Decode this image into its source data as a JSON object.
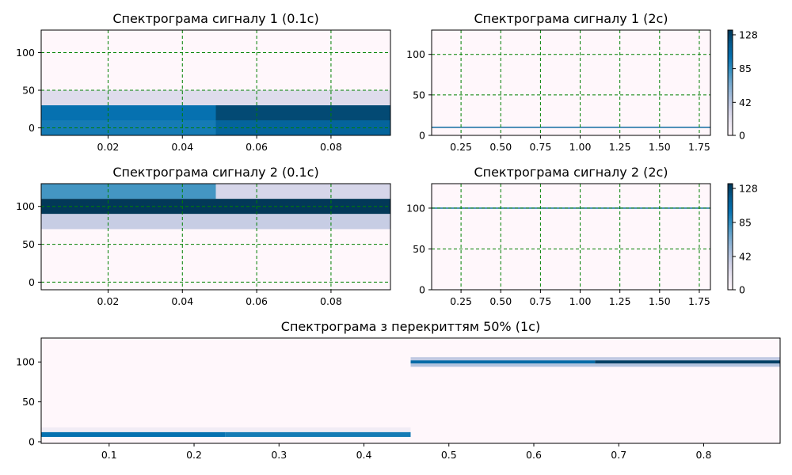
{
  "colormap": {
    "name": "PuBu",
    "stops": [
      "#fff7fb",
      "#ece7f2",
      "#d0d1e6",
      "#a6bddb",
      "#74a9cf",
      "#3690c0",
      "#0570b0",
      "#045a8d",
      "#023858"
    ]
  },
  "chart_data": [
    {
      "id": "s1_short",
      "type": "heatmap",
      "title": "Спектрограма сигналу 1 (0.1с)",
      "xlim": [
        0.002,
        0.096
      ],
      "ylim": [
        -10,
        130
      ],
      "xticks": [
        0.02,
        0.04,
        0.06,
        0.08
      ],
      "xtick_labels": [
        "0.02",
        "0.04",
        "0.06",
        "0.08"
      ],
      "yticks": [
        0,
        50,
        100
      ],
      "ytick_labels": [
        "0",
        "50",
        "100"
      ],
      "grid": true,
      "cells": [
        {
          "x0": 0.002,
          "x1": 0.049,
          "y0": -10,
          "y1": 10,
          "v": 95
        },
        {
          "x0": 0.049,
          "x1": 0.096,
          "y0": -10,
          "y1": 10,
          "v": 110
        },
        {
          "x0": 0.002,
          "x1": 0.049,
          "y0": 10,
          "y1": 30,
          "v": 100
        },
        {
          "x0": 0.049,
          "x1": 0.096,
          "y0": 10,
          "y1": 30,
          "v": 125
        },
        {
          "x0": 0.002,
          "x1": 0.096,
          "y0": 30,
          "y1": 50,
          "v": 25
        }
      ]
    },
    {
      "id": "s1_long",
      "type": "heatmap",
      "title": "Спектрограма сигналу 1 (2с)",
      "xlim": [
        0.065,
        1.82
      ],
      "ylim": [
        0,
        130
      ],
      "xticks": [
        0.25,
        0.5,
        0.75,
        1.0,
        1.25,
        1.5,
        1.75
      ],
      "xtick_labels": [
        "0.25",
        "0.50",
        "0.75",
        "1.00",
        "1.25",
        "1.50",
        "1.75"
      ],
      "yticks": [
        0,
        50,
        100
      ],
      "ytick_labels": [
        "0",
        "50",
        "100"
      ],
      "grid": true,
      "cells": [
        {
          "x0": 0.065,
          "x1": 1.82,
          "y0": 9.3,
          "y1": 10.7,
          "v": 110
        }
      ],
      "colorbar": {
        "ticks": [
          0,
          42,
          85,
          128
        ],
        "tick_labels": [
          "0",
          "42",
          "85",
          "128"
        ],
        "range": [
          0,
          134
        ]
      }
    },
    {
      "id": "s2_short",
      "type": "heatmap",
      "title": "Спектрограма сигналу 2 (0.1с)",
      "xlim": [
        0.002,
        0.096
      ],
      "ylim": [
        -10,
        130
      ],
      "xticks": [
        0.02,
        0.04,
        0.06,
        0.08
      ],
      "xtick_labels": [
        "0.02",
        "0.04",
        "0.06",
        "0.08"
      ],
      "yticks": [
        0,
        50,
        100
      ],
      "ytick_labels": [
        "0",
        "50",
        "100"
      ],
      "grid": true,
      "cells": [
        {
          "x0": 0.002,
          "x1": 0.049,
          "y0": 110,
          "y1": 130,
          "v": 80
        },
        {
          "x0": 0.049,
          "x1": 0.096,
          "y0": 110,
          "y1": 130,
          "v": 30
        },
        {
          "x0": 0.002,
          "x1": 0.096,
          "y0": 90,
          "y1": 110,
          "v": 134
        },
        {
          "x0": 0.002,
          "x1": 0.096,
          "y0": 70,
          "y1": 90,
          "v": 37
        }
      ]
    },
    {
      "id": "s2_long",
      "type": "heatmap",
      "title": "Спектрограма сигналу 2 (2с)",
      "xlim": [
        0.065,
        1.82
      ],
      "ylim": [
        0,
        130
      ],
      "xticks": [
        0.25,
        0.5,
        0.75,
        1.0,
        1.25,
        1.5,
        1.75
      ],
      "xtick_labels": [
        "0.25",
        "0.50",
        "0.75",
        "1.00",
        "1.25",
        "1.50",
        "1.75"
      ],
      "yticks": [
        0,
        50,
        100
      ],
      "ytick_labels": [
        "0",
        "50",
        "100"
      ],
      "grid": true,
      "cells": [
        {
          "x0": 0.065,
          "x1": 1.82,
          "y0": 99.3,
          "y1": 100.7,
          "v": 110
        }
      ],
      "colorbar": {
        "ticks": [
          0,
          42,
          85,
          128
        ],
        "tick_labels": [
          "0",
          "42",
          "85",
          "128"
        ],
        "range": [
          0,
          134
        ]
      }
    },
    {
      "id": "overlap",
      "type": "heatmap",
      "title": "Спектрограма з перекриттям 50% (1с)",
      "xlim": [
        0.02,
        0.89
      ],
      "ylim": [
        -2,
        130
      ],
      "xticks": [
        0.1,
        0.2,
        0.3,
        0.4,
        0.5,
        0.6,
        0.7,
        0.8
      ],
      "xtick_labels": [
        "0.1",
        "0.2",
        "0.3",
        "0.4",
        "0.5",
        "0.6",
        "0.7",
        "0.8"
      ],
      "yticks": [
        0,
        50,
        100
      ],
      "ytick_labels": [
        "0",
        "50",
        "100"
      ],
      "grid": false,
      "cells": [
        {
          "x0": 0.02,
          "x1": 0.455,
          "y0": 12,
          "y1": 18,
          "v": 12
        },
        {
          "x0": 0.02,
          "x1": 0.237,
          "y0": 6,
          "y1": 12,
          "v": 100
        },
        {
          "x0": 0.237,
          "x1": 0.455,
          "y0": 6,
          "y1": 12,
          "v": 95
        },
        {
          "x0": 0.455,
          "x1": 0.89,
          "y0": 102,
          "y1": 106,
          "v": 40
        },
        {
          "x0": 0.455,
          "x1": 0.672,
          "y0": 98,
          "y1": 102,
          "v": 105
        },
        {
          "x0": 0.672,
          "x1": 0.89,
          "y0": 98,
          "y1": 102,
          "v": 130
        },
        {
          "x0": 0.455,
          "x1": 0.89,
          "y0": 94,
          "y1": 98,
          "v": 45
        }
      ]
    }
  ]
}
